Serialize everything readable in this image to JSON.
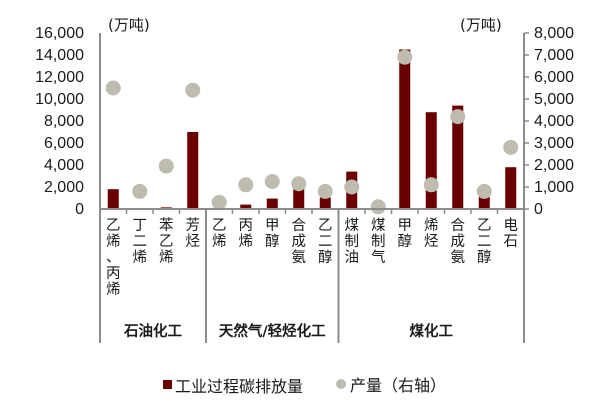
{
  "chart_data": {
    "type": "bar",
    "title": "",
    "left_axis": {
      "unit": "(万吨)",
      "ticks": [
        "0",
        "2,000",
        "4,000",
        "6,000",
        "8,000",
        "10,000",
        "12,000",
        "14,000",
        "16,000"
      ],
      "ylim": [
        0,
        16000
      ]
    },
    "right_axis": {
      "unit": "(万吨)",
      "ticks": [
        "0",
        "1,000",
        "2,000",
        "3,000",
        "4,000",
        "5,000",
        "6,000",
        "7,000",
        "8,000"
      ],
      "ylim": [
        0,
        8000
      ]
    },
    "groups": [
      {
        "name": "石油化工",
        "count": 4
      },
      {
        "name": "天然气/轻烃化工",
        "count": 5
      },
      {
        "name": "煤化工",
        "count": 7
      }
    ],
    "categories": [
      "乙烯、丙烯",
      "丁二烯",
      "苯乙烯",
      "芳烃",
      "乙烯",
      "丙烯",
      "甲醇",
      "合成氨",
      "乙二醇",
      "煤制油",
      "煤制气",
      "甲醇",
      "烯烃",
      "合成氨",
      "乙二醇",
      "电石"
    ],
    "series": [
      {
        "name": "工业过程碳排放量",
        "type": "bar",
        "axis": "left",
        "color": "#6b0000",
        "values": [
          1800,
          0,
          150,
          7000,
          0,
          400,
          950,
          2100,
          1050,
          3400,
          0,
          14500,
          8800,
          9400,
          1100,
          3800
        ]
      },
      {
        "name": "产量（右轴）",
        "type": "scatter",
        "axis": "right",
        "color": "#bdbcae",
        "values": [
          5500,
          800,
          1950,
          5400,
          300,
          1100,
          1250,
          1150,
          800,
          1000,
          100,
          6900,
          1100,
          4200,
          800,
          2800
        ]
      }
    ],
    "legend": {
      "position": "bottom",
      "items": [
        "工业过程碳排放量",
        "产量（右轴）"
      ]
    },
    "grid": false
  }
}
